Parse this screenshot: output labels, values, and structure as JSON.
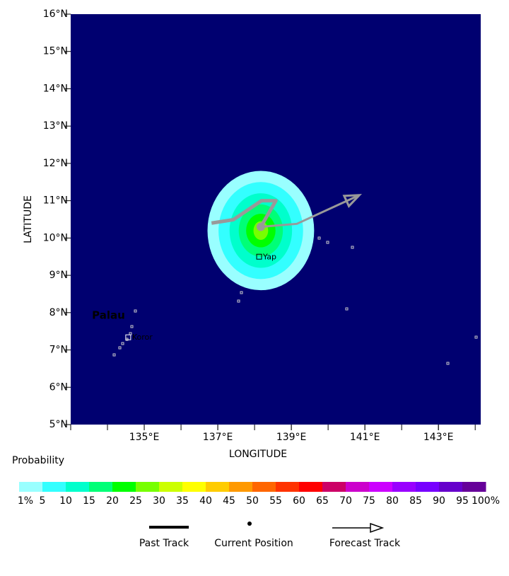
{
  "map": {
    "xlim": [
      133,
      144.15
    ],
    "ylim": [
      5,
      16
    ],
    "xlabel": "LONGITUDE",
    "ylabel": "LATITUDE",
    "background": "#000070",
    "xticks": [
      {
        "value": 135,
        "label": "135°E"
      },
      {
        "value": 137,
        "label": "137°E"
      },
      {
        "value": 139,
        "label": "139°E"
      },
      {
        "value": 141,
        "label": "141°E"
      },
      {
        "value": 143,
        "label": "143°E"
      }
    ],
    "yticks": [
      {
        "value": 5,
        "label": "5°N"
      },
      {
        "value": 6,
        "label": "6°N"
      },
      {
        "value": 7,
        "label": "7°N"
      },
      {
        "value": 8,
        "label": "8°N"
      },
      {
        "value": 9,
        "label": "9°N"
      },
      {
        "value": 10,
        "label": "10°N"
      },
      {
        "value": 11,
        "label": "11°N"
      },
      {
        "value": 12,
        "label": "12°N"
      },
      {
        "value": 13,
        "label": "13°N"
      },
      {
        "value": 14,
        "label": "14°N"
      },
      {
        "value": 15,
        "label": "15°N"
      },
      {
        "value": 16,
        "label": "16°N"
      }
    ],
    "probability_center": {
      "lon": 138.17,
      "lat": 10.2
    },
    "probability": [
      {
        "level": 1,
        "lon_radius": 1.45,
        "lat_radius": 1.6
      },
      {
        "level": 5,
        "lon_radius": 1.15,
        "lat_radius": 1.3
      },
      {
        "level": 10,
        "lon_radius": 0.85,
        "lat_radius": 1.0
      },
      {
        "level": 15,
        "lon_radius": 0.6,
        "lat_radius": 0.7
      },
      {
        "level": 20,
        "lon_radius": 0.4,
        "lat_radius": 0.45
      },
      {
        "level": 25,
        "lon_radius": 0.2,
        "lat_radius": 0.25
      }
    ],
    "track_color": "#999999",
    "past_track": {
      "lon": [
        136.83,
        137.42,
        138.19,
        138.58,
        138.17
      ],
      "lat": [
        10.4,
        10.49,
        11.0,
        11.0,
        10.3
      ]
    },
    "current_position": {
      "lon": 138.17,
      "lat": 10.3
    },
    "forecast_track": {
      "lon": [
        138.17,
        139.15,
        140.85
      ],
      "lat": [
        10.3,
        10.38,
        11.15
      ]
    },
    "places": [
      {
        "name": "Palau",
        "lon": 133.58,
        "lat": 7.92,
        "color": "#00cc00"
      },
      {
        "name": "Koror",
        "lon": 134.67,
        "lat": 7.33,
        "color": "#ffffff"
      },
      {
        "name": "Yap",
        "lon": 138.23,
        "lat": 9.49,
        "color": "#000000"
      }
    ]
  },
  "colorbar": {
    "title": "Probability",
    "colors": [
      "#99ffff",
      "#33ffff",
      "#00ffcc",
      "#00ff77",
      "#00ff00",
      "#77ff00",
      "#ccff00",
      "#ffff00",
      "#ffcc00",
      "#ff9900",
      "#ff6600",
      "#ff3300",
      "#ff0000",
      "#cc0066",
      "#cc00cc",
      "#cc00ff",
      "#9900ff",
      "#7700ff",
      "#6600cc",
      "#660099"
    ],
    "labels": [
      {
        "value": 1,
        "label": "1%"
      },
      5,
      10,
      15,
      20,
      25,
      30,
      35,
      40,
      45,
      50,
      55,
      60,
      65,
      70,
      75,
      80,
      85,
      90,
      95,
      {
        "value": 100,
        "label": "100%"
      }
    ]
  },
  "legend": {
    "past_track": "Past Track",
    "current_position": "Current Position",
    "forecast_track": "Forecast Track"
  }
}
